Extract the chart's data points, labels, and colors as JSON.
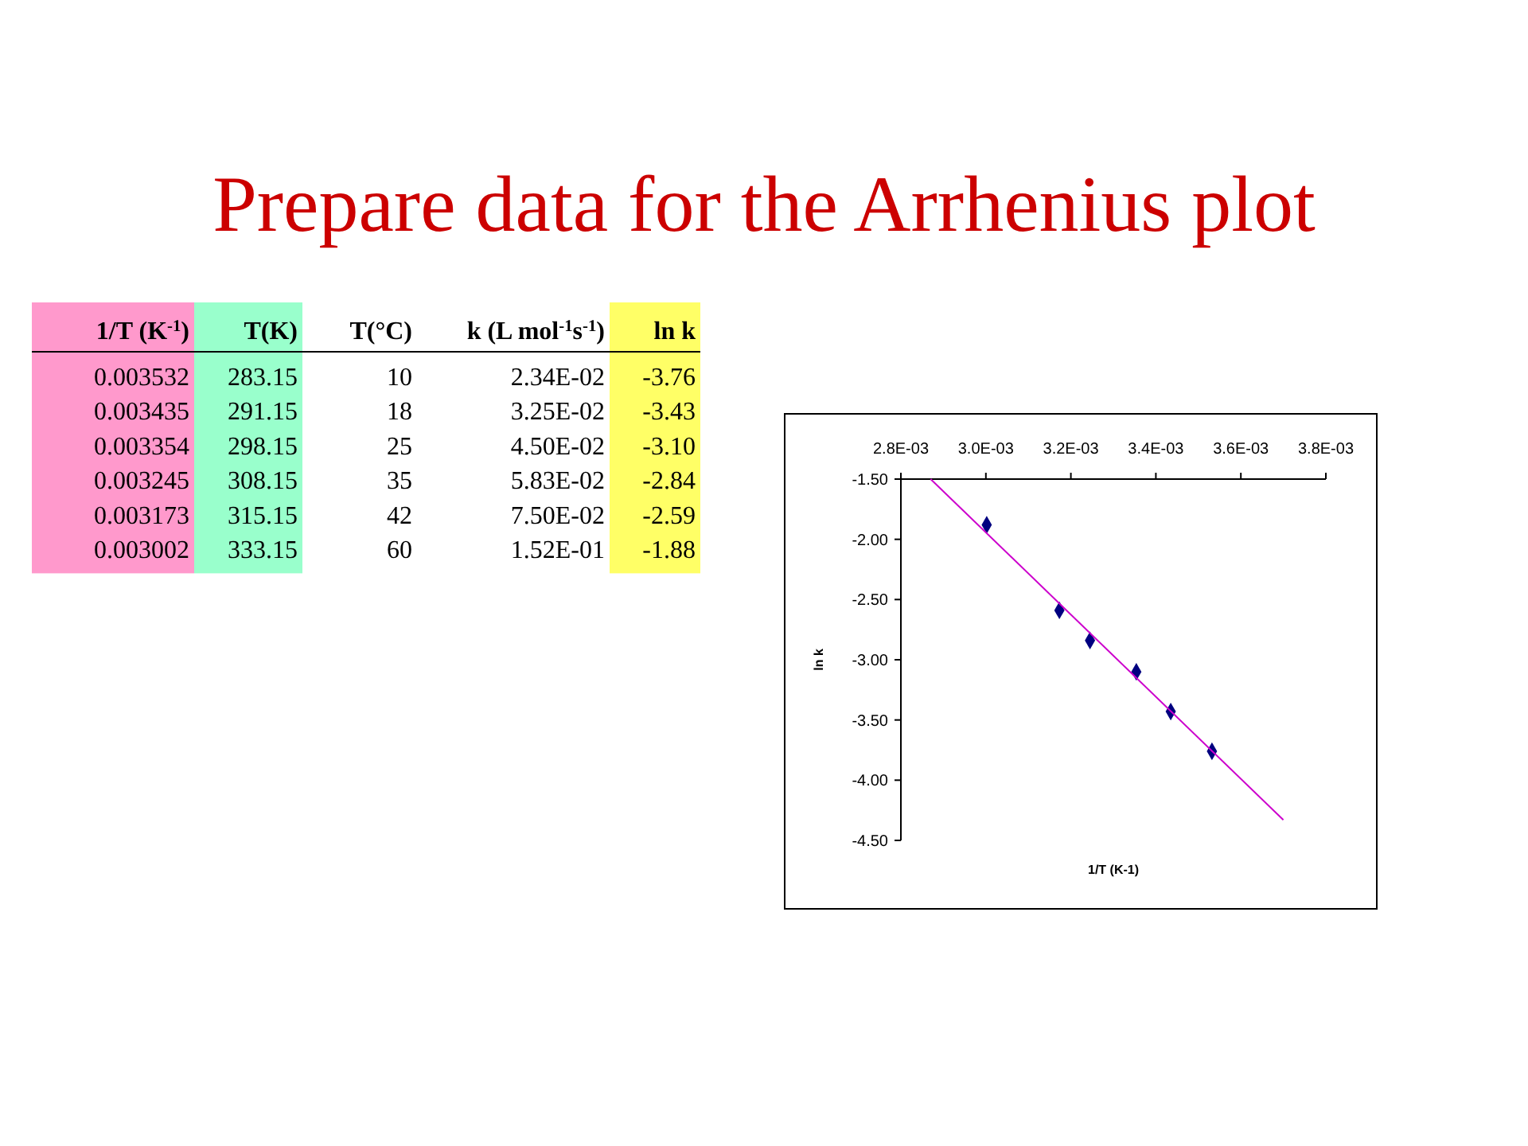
{
  "chart_data": [
    {
      "type": "other",
      "title": "Prepare data for the Arrhenius plot",
      "categories": [
        "1/T (K$^{-1}$)",
        "T(K)",
        "T(°C)",
        "k (L mol$^{-1}$s$^{-1}$)",
        "ln k"
      ],
      "colors": [
        "#ff99cc",
        "#99ffcc",
        null,
        null,
        "#ffff66"
      ],
      "annotations": [
        "0.003532",
        "283.15",
        "10",
        "2.34E-02",
        "-3.76",
        "0.003435",
        "291.15",
        "18",
        "3.25E-02",
        "-3.43",
        "0.003354",
        "298.15",
        "25",
        "4.50E-02",
        "-3.10",
        "0.003245",
        "308.15",
        "35",
        "5.83E-02",
        "-2.84",
        "0.003173",
        "315.15",
        "42",
        "7.50E-02",
        "-2.59",
        "0.003002",
        "333.15",
        "60",
        "1.52E-01",
        "-1.88"
      ]
    },
    {
      "type": "scatter",
      "xlabel": "1/T (K-1)",
      "ylabel": "ln k",
      "xlim": [
        0.0028,
        0.0038
      ],
      "xticks": [
        {
          "value": 0.0028,
          "label": "2.8E-03"
        },
        {
          "value": 0.003,
          "label": "3.0E-03"
        },
        {
          "value": 0.0032,
          "label": "3.2E-03"
        },
        {
          "value": 0.0034,
          "label": "3.4E-03"
        },
        {
          "value": 0.0036,
          "label": "3.6E-03"
        },
        {
          "value": 0.0038,
          "label": "3.8E-03"
        }
      ],
      "ylim": [
        -4.5,
        -1.5
      ],
      "yticks": [
        {
          "value": -1.5,
          "label": "-1.50"
        },
        {
          "value": -2,
          "label": "-2.00"
        },
        {
          "value": -2.5,
          "label": "-2.50"
        },
        {
          "value": -3,
          "label": "-3.00"
        },
        {
          "value": -3.5,
          "label": "-3.50"
        },
        {
          "value": -4,
          "label": "-4.00"
        },
        {
          "value": -4.5,
          "label": "-4.50"
        }
      ],
      "grid": false,
      "series": [
        {
          "type": "scatter",
          "color": "#000080",
          "marker": "diamond",
          "x": [
            0.003532,
            0.003435,
            0.003354,
            0.003245,
            0.003173,
            0.003002
          ],
          "values": [
            -3.76,
            -3.43,
            -3.1,
            -2.84,
            -2.59,
            -1.88
          ]
        },
        {
          "type": "line",
          "color": "#cc00cc",
          "marker": "none",
          "line_style": "solid",
          "x": [
            0.00287,
            0.0037
          ],
          "values": [
            -1.5,
            -4.33
          ]
        }
      ]
    }
  ]
}
